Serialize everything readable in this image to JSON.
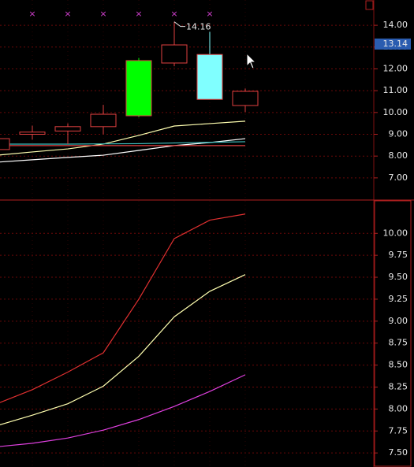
{
  "chart_data": [
    {
      "type": "candlestick",
      "categories": [
        null,
        null,
        null,
        null,
        null,
        null,
        null,
        null
      ],
      "open": [
        8.3,
        9.0,
        9.15,
        9.35,
        12.38,
        12.27,
        12.66,
        10.32
      ],
      "high": [
        8.9,
        9.4,
        9.5,
        10.35,
        12.5,
        14.16,
        13.7,
        11.1
      ],
      "low": [
        8.1,
        8.75,
        8.55,
        9.0,
        9.78,
        12.12,
        10.6,
        10.03
      ],
      "close": [
        8.8,
        9.1,
        9.35,
        9.92,
        9.85,
        13.1,
        10.6,
        10.97
      ],
      "colors": [
        "#e04040",
        "#e04040",
        "#e04040",
        "#e04040",
        "#00ff00",
        "#e04040",
        "#80ffff",
        "#e04040"
      ],
      "lines": [
        {
          "color": "#ffffb0",
          "values": [
            8.04,
            8.19,
            8.33,
            8.55,
            8.95,
            9.38,
            9.49,
            9.6
          ]
        },
        {
          "color": "#ffffff",
          "values": [
            7.72,
            7.83,
            7.94,
            8.04,
            8.26,
            8.48,
            8.62,
            8.8
          ]
        },
        {
          "color": "#40c0c0",
          "values": [
            8.55,
            8.55,
            8.55,
            8.56,
            8.57,
            8.6,
            8.63,
            8.66
          ]
        },
        {
          "color": "#e04040",
          "values": [
            8.48,
            8.48,
            8.48,
            8.48,
            8.48,
            8.48,
            8.48,
            8.48
          ]
        }
      ],
      "last_price": 13.14,
      "ylim": [
        6.02,
        15.16
      ],
      "yticks": [
        {
          "value": 7,
          "label": "7.00"
        },
        {
          "value": 8,
          "label": "8.00"
        },
        {
          "value": 9,
          "label": "9.00"
        },
        {
          "value": 10,
          "label": "10.00"
        },
        {
          "value": 11,
          "label": "11.00"
        },
        {
          "value": 12,
          "label": "12.00"
        },
        {
          "value": 13,
          "label": "13.00"
        },
        {
          "value": 14,
          "label": "14.00"
        }
      ],
      "grid": true
    },
    {
      "type": "line",
      "categories": [
        null,
        null,
        null,
        null,
        null,
        null,
        null,
        null
      ],
      "lines": [
        {
          "color": "#e03030",
          "values": [
            8.06,
            8.22,
            8.42,
            8.64,
            9.25,
            9.94,
            10.15,
            10.22
          ]
        },
        {
          "color": "#ffffb0",
          "values": [
            7.81,
            7.93,
            8.06,
            8.26,
            8.6,
            9.05,
            9.34,
            9.53
          ]
        },
        {
          "color": "#e040e0",
          "values": [
            7.57,
            7.61,
            7.67,
            7.76,
            7.88,
            8.03,
            8.2,
            8.39
          ]
        }
      ],
      "ylim": [
        7.34,
        10.37
      ],
      "yticks": [
        {
          "value": 7.5,
          "label": "7.50"
        },
        {
          "value": 7.75,
          "label": "7.75"
        },
        {
          "value": 8,
          "label": "8.00"
        },
        {
          "value": 8.25,
          "label": "8.25"
        },
        {
          "value": 8.5,
          "label": "8.50"
        },
        {
          "value": 8.75,
          "label": "8.75"
        },
        {
          "value": 9,
          "label": "9.00"
        },
        {
          "value": 9.25,
          "label": "9.25"
        },
        {
          "value": 9.5,
          "label": "9.50"
        },
        {
          "value": 9.75,
          "label": "9.75"
        },
        {
          "value": 10,
          "label": "10.00"
        }
      ],
      "grid": true
    }
  ]
}
